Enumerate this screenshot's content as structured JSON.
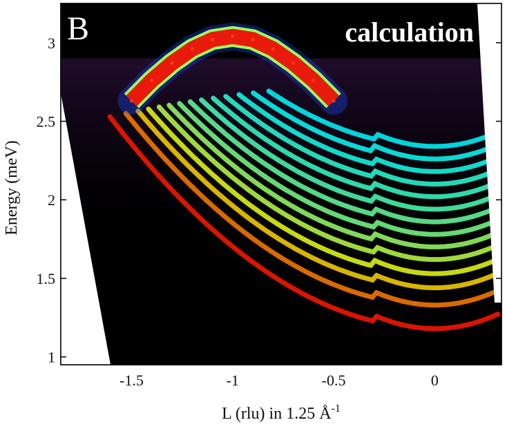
{
  "chart_data": {
    "type": "heatmap",
    "panel_label": "B",
    "annotation": "calculation",
    "xlabel_main": "L (rlu) in 1.25 Å",
    "xlabel_superscript": "-1",
    "ylabel": "Energy (meV)",
    "xlim": [
      -1.85,
      0.33
    ],
    "ylim": [
      0.95,
      3.25
    ],
    "xticks": [
      -1.5,
      -1,
      -0.5,
      0
    ],
    "xtick_labels": [
      "-1.5",
      "-1",
      "-0.5",
      "0"
    ],
    "yticks": [
      1,
      1.5,
      2,
      2.5,
      3
    ],
    "ytick_labels": [
      "1",
      "1.5",
      "2",
      "2.5",
      "3"
    ],
    "colormap": "jet",
    "background_color": "#000000",
    "main_band": {
      "description": "intense upper magnon band",
      "points": [
        {
          "L": -1.5,
          "E": 2.63
        },
        {
          "L": -1.4,
          "E": 2.76
        },
        {
          "L": -1.3,
          "E": 2.87
        },
        {
          "L": -1.2,
          "E": 2.96
        },
        {
          "L": -1.1,
          "E": 3.02
        },
        {
          "L": -1.0,
          "E": 3.04
        },
        {
          "L": -0.9,
          "E": 3.02
        },
        {
          "L": -0.8,
          "E": 2.96
        },
        {
          "L": -0.7,
          "E": 2.87
        },
        {
          "L": -0.6,
          "E": 2.76
        },
        {
          "L": -0.5,
          "E": 2.63
        }
      ]
    },
    "lower_bands": {
      "description": "discrete parabolic sub-bands centred at L = 0",
      "min_energies": [
        1.18,
        1.33,
        1.44,
        1.53,
        1.62,
        1.7,
        1.78,
        1.86,
        1.94,
        2.02,
        2.1,
        2.18,
        2.26,
        2.34
      ],
      "intensities": [
        1.0,
        0.85,
        0.72,
        0.62,
        0.55,
        0.5,
        0.45,
        0.42,
        0.38,
        0.35,
        0.33,
        0.3,
        0.28,
        0.26
      ]
    }
  }
}
